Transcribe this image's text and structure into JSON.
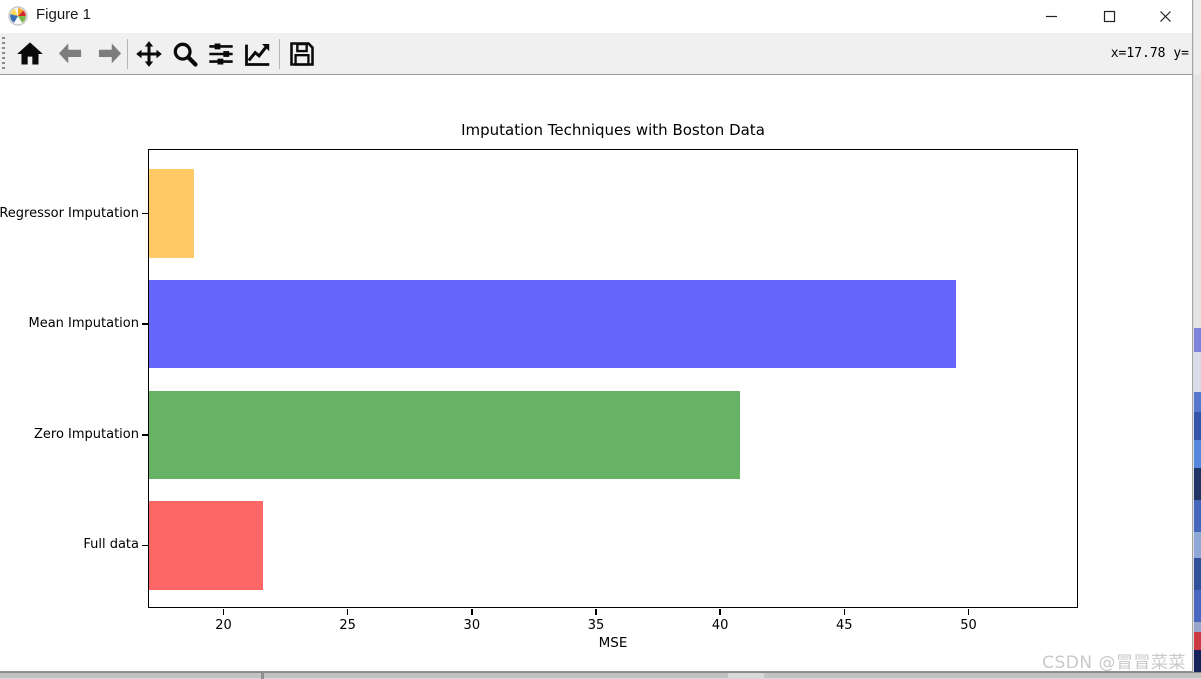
{
  "window": {
    "title": "Figure 1",
    "controls": {
      "minimize_icon": "minimize-icon",
      "maximize_icon": "maximize-icon",
      "close_icon": "close-icon"
    }
  },
  "toolbar": {
    "icons": [
      "home",
      "back",
      "forward",
      "pan",
      "zoom-to-rect",
      "configure-subplots",
      "edit-parameters",
      "save"
    ],
    "status": "x=17.78 y="
  },
  "chart_data": {
    "type": "bar",
    "orientation": "horizontal",
    "title": "Imputation Techniques with Boston Data",
    "categories": [
      "Regressor Imputation",
      "Mean Imputation",
      "Zero Imputation",
      "Full data"
    ],
    "values": [
      18.8,
      49.5,
      40.8,
      21.6
    ],
    "bar_colors": [
      "#ffc966",
      "#6666ff",
      "#66b366",
      "#ff6666"
    ],
    "xlabel": "MSE",
    "ylabel": "",
    "xlim": [
      17.0,
      54.45
    ],
    "xticks": [
      20,
      25,
      30,
      35,
      40,
      45,
      50
    ],
    "grid": false,
    "legend": null
  },
  "watermark": "CSDN @冒冒菜菜"
}
